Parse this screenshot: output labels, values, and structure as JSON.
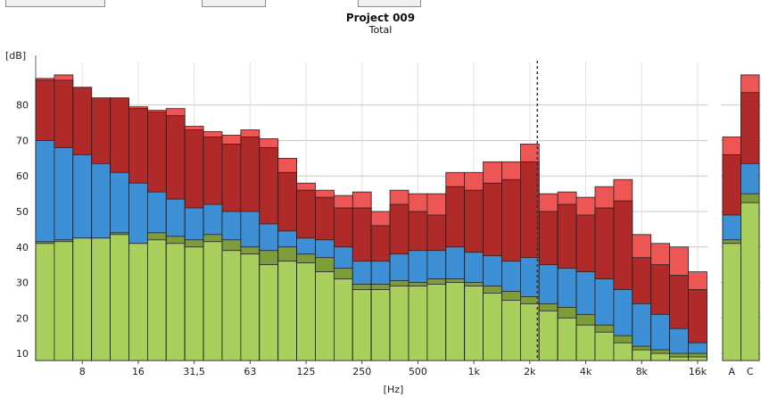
{
  "toolbar": {},
  "chart_data": {
    "type": "bar",
    "title": "Project 009",
    "subtitle": "Total",
    "ylabel": "[dB]",
    "xlabel": "[Hz]",
    "ylim": [
      8,
      92
    ],
    "yticks": [
      10,
      20,
      30,
      40,
      50,
      60,
      70,
      80
    ],
    "grid": true,
    "stacked_overlay": true,
    "colors": {
      "light_red": "#ee5555",
      "red": "#b02a2a",
      "blue": "#3d8fd6",
      "dark_green": "#7d9c3a",
      "light_green": "#a9cf5c",
      "grid": "#c8c8c8",
      "bar_outline": "#222222",
      "cursor": "#333333"
    },
    "x_tick_labels": [
      {
        "label": "8",
        "band": 2
      },
      {
        "label": "16",
        "band": 5
      },
      {
        "label": "31,5",
        "band": 8
      },
      {
        "label": "63",
        "band": 11
      },
      {
        "label": "125",
        "band": 14
      },
      {
        "label": "250",
        "band": 17
      },
      {
        "label": "500",
        "band": 20
      },
      {
        "label": "1k",
        "band": 23
      },
      {
        "label": "2k",
        "band": 26
      },
      {
        "label": "4k",
        "band": 29
      },
      {
        "label": "8k",
        "band": 32
      },
      {
        "label": "16k",
        "band": 35
      }
    ],
    "total_labels": [
      "A",
      "C"
    ],
    "cursor_band": 27,
    "bands": [
      {
        "light_red": 87.5,
        "red": 87,
        "blue": 70,
        "dark_green": 41.5,
        "light_green": 41
      },
      {
        "light_red": 88.5,
        "red": 87,
        "blue": 68,
        "dark_green": 42,
        "light_green": 41.5
      },
      {
        "light_red": 85,
        "red": 85,
        "blue": 66,
        "dark_green": 42.5,
        "light_green": 42.5
      },
      {
        "light_red": 82,
        "red": 82,
        "blue": 63.5,
        "dark_green": 42.5,
        "light_green": 42.5
      },
      {
        "light_red": 82,
        "red": 82,
        "blue": 61,
        "dark_green": 44,
        "light_green": 43.5
      },
      {
        "light_red": 79.5,
        "red": 79,
        "blue": 58,
        "dark_green": 41,
        "light_green": 41
      },
      {
        "light_red": 78.5,
        "red": 78,
        "blue": 55.5,
        "dark_green": 44,
        "light_green": 42
      },
      {
        "light_red": 79,
        "red": 77,
        "blue": 53.5,
        "dark_green": 43,
        "light_green": 41
      },
      {
        "light_red": 74,
        "red": 73,
        "blue": 51,
        "dark_green": 42,
        "light_green": 40
      },
      {
        "light_red": 72.5,
        "red": 71,
        "blue": 52,
        "dark_green": 43.5,
        "light_green": 41.5
      },
      {
        "light_red": 71.5,
        "red": 69,
        "blue": 50,
        "dark_green": 42,
        "light_green": 39
      },
      {
        "light_red": 73,
        "red": 71,
        "blue": 50,
        "dark_green": 40,
        "light_green": 38
      },
      {
        "light_red": 70.5,
        "red": 68,
        "blue": 46.5,
        "dark_green": 39,
        "light_green": 35
      },
      {
        "light_red": 65,
        "red": 61,
        "blue": 44.5,
        "dark_green": 40,
        "light_green": 36
      },
      {
        "light_red": 58,
        "red": 56,
        "blue": 42.5,
        "dark_green": 38,
        "light_green": 35.5
      },
      {
        "light_red": 56,
        "red": 54,
        "blue": 42,
        "dark_green": 37,
        "light_green": 33
      },
      {
        "light_red": 54.5,
        "red": 51,
        "blue": 40,
        "dark_green": 34,
        "light_green": 31
      },
      {
        "light_red": 55.5,
        "red": 51,
        "blue": 36,
        "dark_green": 29.5,
        "light_green": 28
      },
      {
        "light_red": 50,
        "red": 46,
        "blue": 36,
        "dark_green": 29.5,
        "light_green": 28
      },
      {
        "light_red": 56,
        "red": 52,
        "blue": 38,
        "dark_green": 30.5,
        "light_green": 29
      },
      {
        "light_red": 55,
        "red": 50,
        "blue": 39,
        "dark_green": 30,
        "light_green": 29
      },
      {
        "light_red": 55,
        "red": 49,
        "blue": 39,
        "dark_green": 31,
        "light_green": 29.5
      },
      {
        "light_red": 61,
        "red": 57,
        "blue": 40,
        "dark_green": 31,
        "light_green": 30
      },
      {
        "light_red": 61,
        "red": 56,
        "blue": 38.5,
        "dark_green": 30,
        "light_green": 29
      },
      {
        "light_red": 64,
        "red": 58,
        "blue": 37.5,
        "dark_green": 29,
        "light_green": 27
      },
      {
        "light_red": 64,
        "red": 59,
        "blue": 36,
        "dark_green": 27.5,
        "light_green": 25
      },
      {
        "light_red": 69,
        "red": 64,
        "blue": 37,
        "dark_green": 26,
        "light_green": 24
      },
      {
        "light_red": 55,
        "red": 50,
        "blue": 35,
        "dark_green": 24,
        "light_green": 22
      },
      {
        "light_red": 55.5,
        "red": 52,
        "blue": 34,
        "dark_green": 23,
        "light_green": 20
      },
      {
        "light_red": 54,
        "red": 49,
        "blue": 33,
        "dark_green": 21,
        "light_green": 18
      },
      {
        "light_red": 57,
        "red": 51,
        "blue": 31,
        "dark_green": 18,
        "light_green": 16
      },
      {
        "light_red": 59,
        "red": 53,
        "blue": 28,
        "dark_green": 15,
        "light_green": 13
      },
      {
        "light_red": 43.5,
        "red": 37,
        "blue": 24,
        "dark_green": 12,
        "light_green": 11
      },
      {
        "light_red": 41,
        "red": 35,
        "blue": 21,
        "dark_green": 11,
        "light_green": 10
      },
      {
        "light_red": 40,
        "red": 32,
        "blue": 17,
        "dark_green": 10,
        "light_green": 9
      },
      {
        "light_red": 33,
        "red": 28,
        "blue": 13,
        "dark_green": 10,
        "light_green": 9
      }
    ],
    "totals": [
      {
        "light_red": 71,
        "red": 66,
        "blue": 49,
        "dark_green": 42,
        "light_green": 41
      },
      {
        "light_red": 88.5,
        "red": 83.5,
        "blue": 63.5,
        "dark_green": 55,
        "light_green": 52.5
      }
    ]
  }
}
